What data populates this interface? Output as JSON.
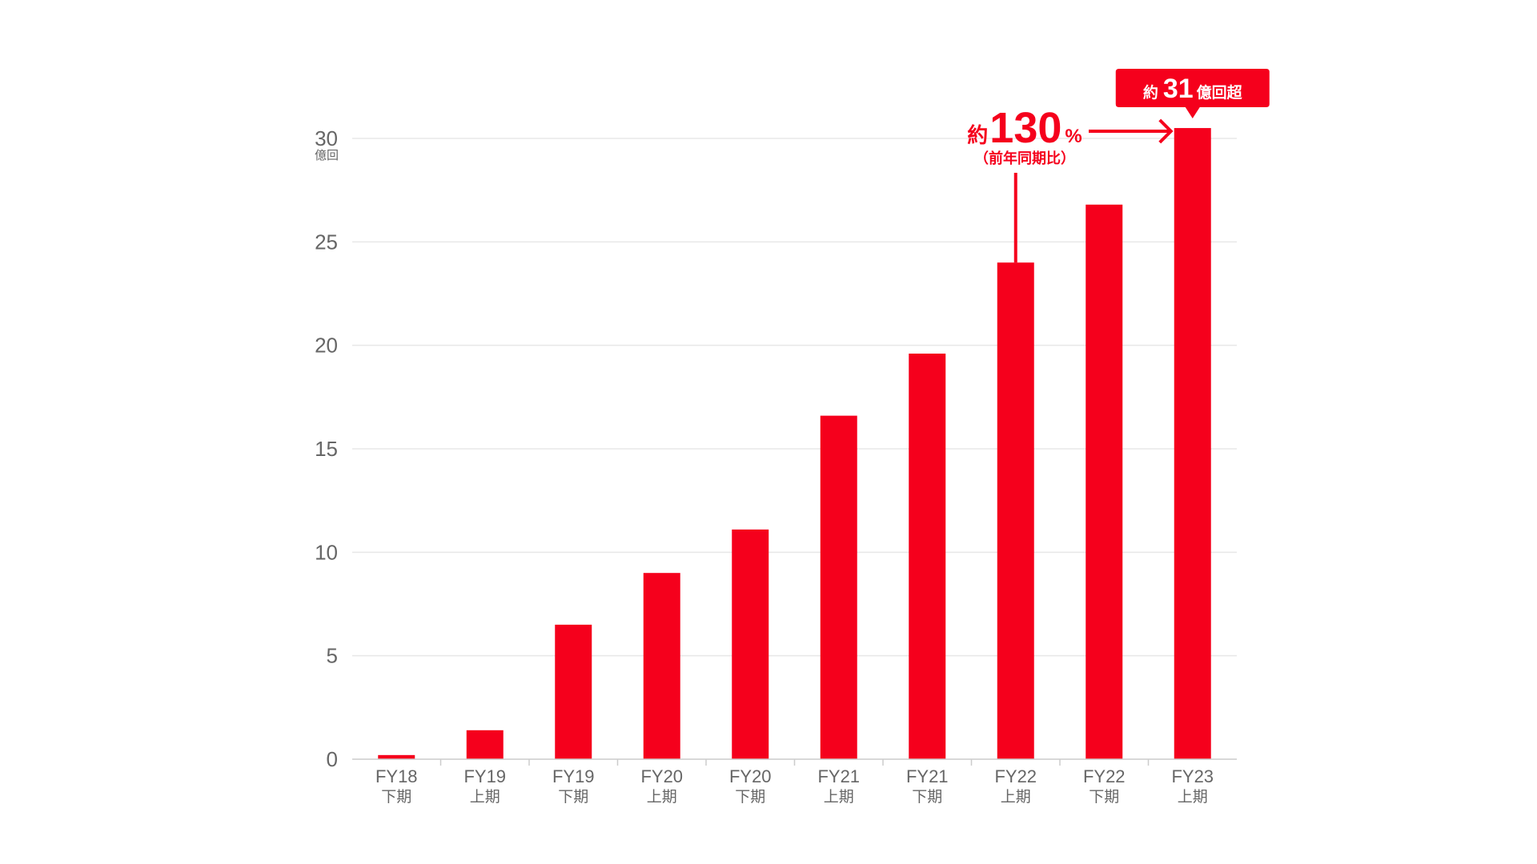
{
  "chart_data": {
    "type": "bar",
    "title": "",
    "xlabel": "",
    "ylabel": "",
    "y_unit": "億回",
    "ylim": [
      0,
      30
    ],
    "yticks": [
      0,
      5,
      10,
      15,
      20,
      25,
      30
    ],
    "grid": true,
    "categories": [
      {
        "fy": "FY18",
        "half": "下期"
      },
      {
        "fy": "FY19",
        "half": "上期"
      },
      {
        "fy": "FY19",
        "half": "下期"
      },
      {
        "fy": "FY20",
        "half": "上期"
      },
      {
        "fy": "FY20",
        "half": "下期"
      },
      {
        "fy": "FY21",
        "half": "上期"
      },
      {
        "fy": "FY21",
        "half": "下期"
      },
      {
        "fy": "FY22",
        "half": "上期"
      },
      {
        "fy": "FY22",
        "half": "下期"
      },
      {
        "fy": "FY23",
        "half": "上期"
      }
    ],
    "values": [
      0.2,
      1.4,
      6.5,
      9.0,
      11.1,
      16.6,
      19.6,
      24.0,
      26.8,
      30.5
    ],
    "bar_color": "#f5001c",
    "annotations": {
      "growth": {
        "prefix": "約",
        "value": "130",
        "suffix": "%",
        "note": "（前年同期比）",
        "from_index": 7,
        "to_index": 9
      },
      "callout": {
        "prefix": "約",
        "value": "31",
        "suffix": "億回超",
        "index": 9
      }
    }
  },
  "colors": {
    "accent": "#f5001c",
    "axis_text": "#666666",
    "grid": "#e8e8e8",
    "axis_line": "#cccccc"
  }
}
